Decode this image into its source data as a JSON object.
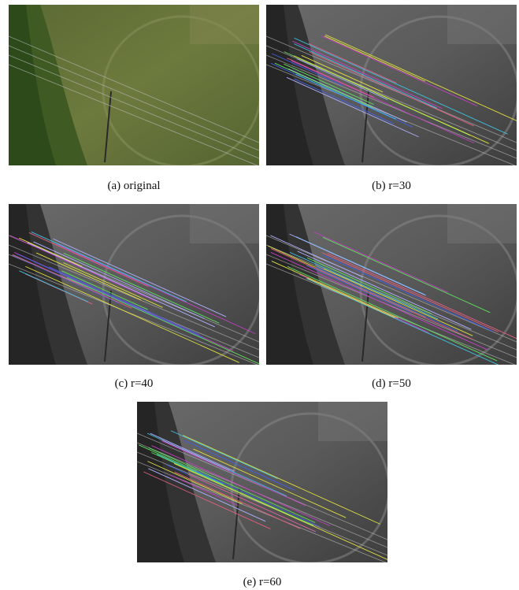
{
  "figure": {
    "panels": [
      {
        "caption": "(a) original"
      },
      {
        "caption": "(b) r=30"
      },
      {
        "caption": "(c) r=40"
      },
      {
        "caption": "(d) r=50"
      },
      {
        "caption": "(e) r=60"
      }
    ]
  }
}
